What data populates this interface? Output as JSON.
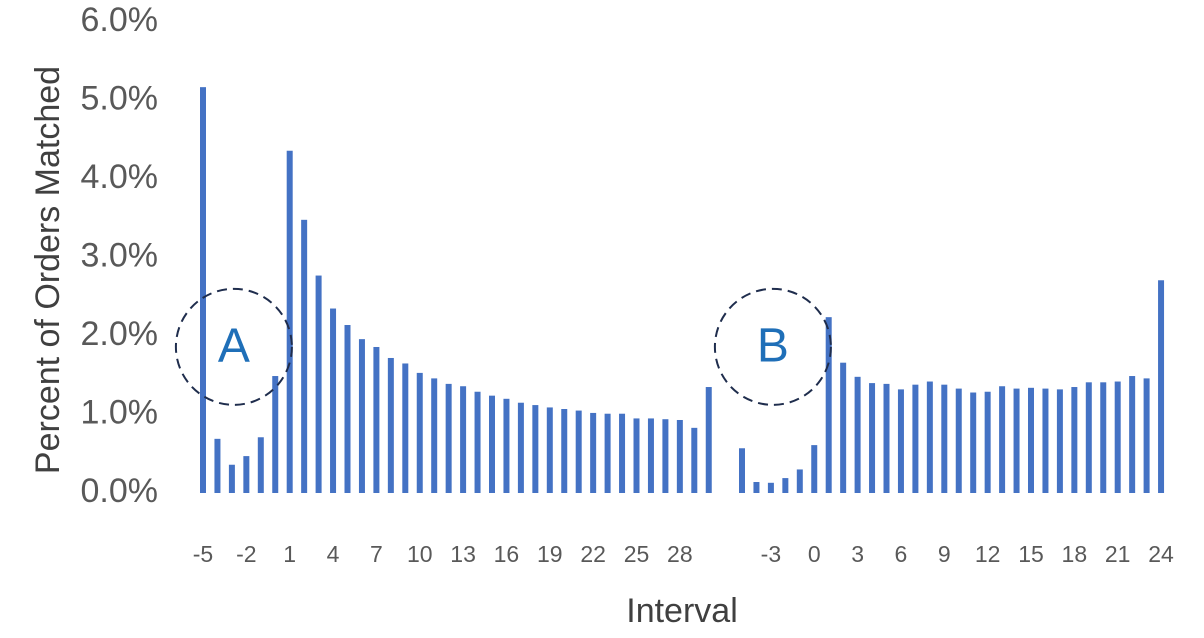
{
  "chart_data": {
    "type": "bar",
    "ylabel": "Percent of Orders Matched",
    "xlabel": "Interval",
    "ylim": [
      0,
      6.0
    ],
    "y_ticks": [
      "0.0%",
      "1.0%",
      "2.0%",
      "3.0%",
      "4.0%",
      "5.0%",
      "6.0%"
    ],
    "grid": false,
    "legend": "none",
    "bar_color": "#4472c4",
    "groups": [
      {
        "x": [
          -5,
          -4,
          -3,
          -2,
          -1,
          0,
          1,
          2,
          3,
          4,
          5,
          6,
          7,
          8,
          9,
          10,
          11,
          12,
          13,
          14,
          15,
          16,
          17,
          18,
          19,
          20,
          21,
          22,
          23,
          24,
          25,
          26,
          27,
          28,
          29,
          30
        ],
        "x_tick_labels": [
          "-5",
          "-2",
          "1",
          "4",
          "7",
          "10",
          "13",
          "16",
          "19",
          "22",
          "25",
          "28"
        ],
        "values": [
          5.17,
          0.69,
          0.36,
          0.47,
          0.71,
          1.49,
          4.36,
          3.48,
          2.77,
          2.35,
          2.14,
          1.96,
          1.86,
          1.72,
          1.65,
          1.53,
          1.46,
          1.39,
          1.36,
          1.29,
          1.24,
          1.2,
          1.15,
          1.12,
          1.09,
          1.07,
          1.05,
          1.02,
          1.01,
          1.01,
          0.95,
          0.95,
          0.94,
          0.93,
          0.83,
          1.35
        ]
      },
      {
        "x": [
          -5,
          -4,
          -3,
          -2,
          -1,
          0,
          1,
          2,
          3,
          4,
          5,
          6,
          7,
          8,
          9,
          10,
          11,
          12,
          13,
          14,
          15,
          16,
          17,
          18,
          19,
          20,
          21,
          22,
          23,
          24
        ],
        "x_tick_labels": [
          "-3",
          "0",
          "3",
          "6",
          "9",
          "12",
          "15",
          "18",
          "21",
          "24"
        ],
        "values": [
          0.57,
          0.14,
          0.13,
          0.19,
          0.3,
          0.61,
          2.24,
          1.66,
          1.48,
          1.4,
          1.39,
          1.32,
          1.38,
          1.42,
          1.38,
          1.33,
          1.28,
          1.29,
          1.36,
          1.33,
          1.34,
          1.33,
          1.32,
          1.35,
          1.41,
          1.41,
          1.42,
          1.49,
          1.46,
          2.71
        ]
      }
    ],
    "annotations": [
      {
        "label": "A",
        "x": -3,
        "y": 1.9
      },
      {
        "label": "B",
        "x": -3,
        "y": 1.9
      }
    ]
  }
}
